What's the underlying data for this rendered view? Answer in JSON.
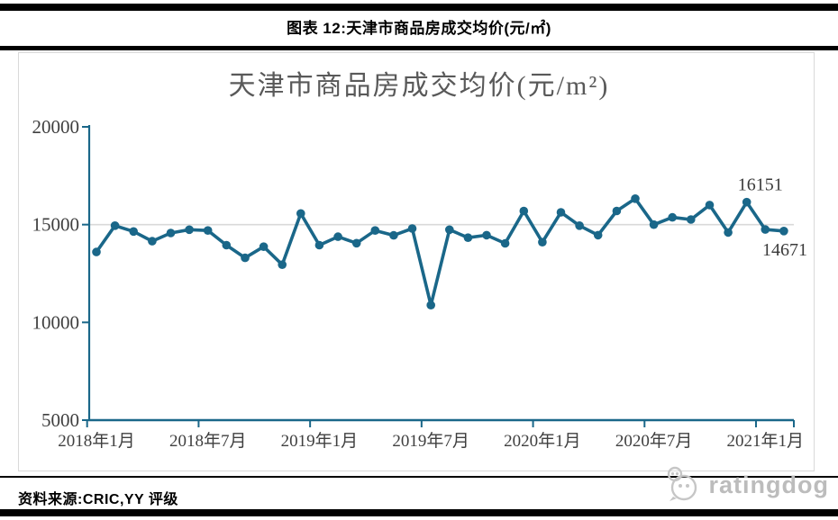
{
  "header": {
    "title": "图表 12:天津市商品房成交均价(元/㎡)"
  },
  "footer": {
    "source_label": "资料来源:CRIC,YY 评级",
    "brand": "ratingdog"
  },
  "colors": {
    "line": "#1A6789",
    "axis": "#1A6789",
    "gridline": "#D9D9D9",
    "tick_label": "#3F3F3F",
    "data_label": "#3A3A3A",
    "chart_border": "#D9D9D9"
  },
  "chart_data": {
    "type": "line",
    "title": "天津市商品房成交均价(元/m²)",
    "xlabel": "",
    "ylabel": "",
    "ylim": [
      5000,
      20000
    ],
    "y_ticks": [
      5000,
      10000,
      15000,
      20000
    ],
    "gridline_at": 15000,
    "legend": "none",
    "x_tick_labels": [
      "2018年1月",
      "2018年7月",
      "2019年1月",
      "2019年7月",
      "2020年1月",
      "2020年7月",
      "2021年1月"
    ],
    "x": [
      "2018-01",
      "2018-02",
      "2018-03",
      "2018-04",
      "2018-05",
      "2018-06",
      "2018-07",
      "2018-08",
      "2018-09",
      "2018-10",
      "2018-11",
      "2018-12",
      "2019-01",
      "2019-02",
      "2019-03",
      "2019-04",
      "2019-05",
      "2019-06",
      "2019-07",
      "2019-08",
      "2019-09",
      "2019-10",
      "2019-11",
      "2019-12",
      "2020-01",
      "2020-02",
      "2020-03",
      "2020-04",
      "2020-05",
      "2020-06",
      "2020-07",
      "2020-08",
      "2020-09",
      "2020-10",
      "2020-11",
      "2020-12",
      "2021-01",
      "2021-02"
    ],
    "series": [
      {
        "name": "天津市商品房成交均价",
        "values": [
          13600,
          14950,
          14650,
          14150,
          14570,
          14740,
          14700,
          13950,
          13300,
          13870,
          12950,
          15570,
          13950,
          14380,
          14050,
          14700,
          14450,
          14800,
          10880,
          14740,
          14330,
          14460,
          14040,
          15700,
          14100,
          15630,
          14950,
          14460,
          15700,
          16330,
          15000,
          15370,
          15260,
          16000,
          14600,
          16151,
          14750,
          14671
        ]
      }
    ],
    "annotations": [
      {
        "index": 35,
        "text": "16151",
        "position": "above-right"
      },
      {
        "index": 37,
        "text": "14671",
        "position": "below"
      }
    ]
  }
}
